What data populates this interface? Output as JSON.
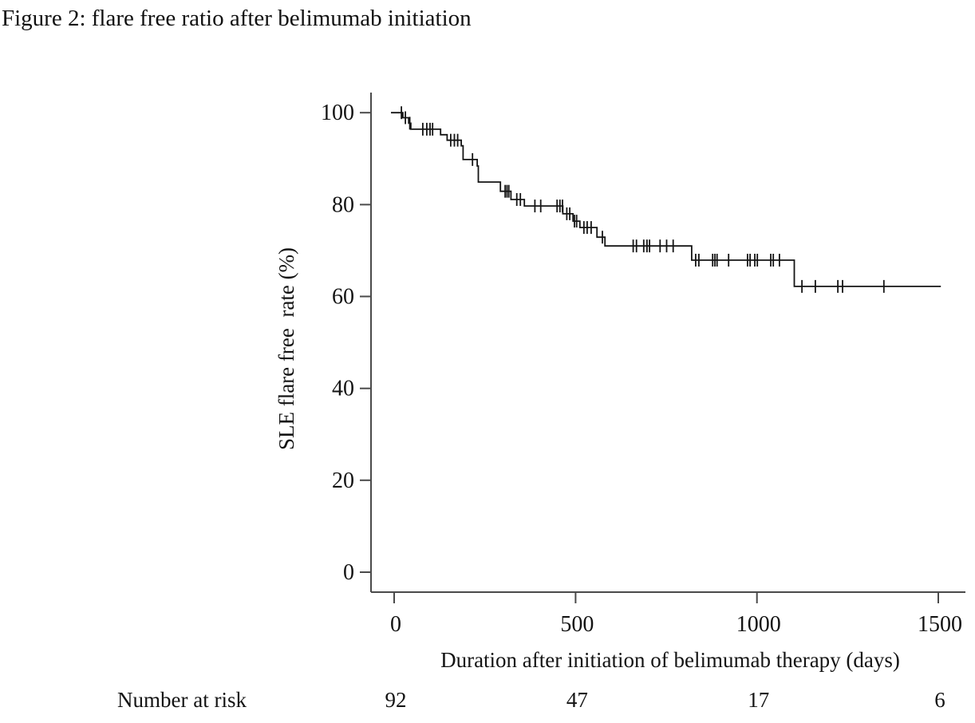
{
  "figure": {
    "title": "Figure 2: flare free ratio after belimumab initiation"
  },
  "chart_data": {
    "type": "line",
    "subtype": "kaplan-meier-step-curve",
    "title": "Figure 2: flare free ratio after belimumab initiation",
    "xlabel": "Duration after initiation of belimumab therapy (days)",
    "ylabel": "SLE flare free  rate (%)",
    "x_ticks": [
      0,
      500,
      1000,
      1500
    ],
    "y_ticks": [
      0,
      20,
      40,
      60,
      80,
      100
    ],
    "xlim": [
      0,
      1580
    ],
    "ylim": [
      0,
      100
    ],
    "grid": "off",
    "legend": "none",
    "curve_color": "#151515",
    "start": {
      "day": 0,
      "level": 100
    },
    "end_day": 1507,
    "steps": [
      [
        24,
        98.9
      ],
      [
        40,
        97.7
      ],
      [
        46,
        96.4
      ],
      [
        128,
        95.2
      ],
      [
        146,
        94.0
      ],
      [
        185,
        92.8
      ],
      [
        190,
        89.8
      ],
      [
        229,
        88.4
      ],
      [
        232,
        84.9
      ],
      [
        293,
        82.9
      ],
      [
        322,
        81.1
      ],
      [
        359,
        79.7
      ],
      [
        465,
        78.0
      ],
      [
        493,
        76.4
      ],
      [
        512,
        75.0
      ],
      [
        559,
        72.9
      ],
      [
        581,
        71.0
      ],
      [
        820,
        67.9
      ],
      [
        1103,
        62.2
      ]
    ],
    "censor_marks": [
      [
        20,
        100
      ],
      [
        31,
        98.9
      ],
      [
        43,
        97.7
      ],
      [
        79,
        96.4
      ],
      [
        90,
        96.4
      ],
      [
        99,
        96.4
      ],
      [
        106,
        96.4
      ],
      [
        156,
        94.0
      ],
      [
        166,
        94.0
      ],
      [
        175,
        94.0
      ],
      [
        216,
        89.8
      ],
      [
        306,
        82.9
      ],
      [
        311,
        82.9
      ],
      [
        316,
        82.9
      ],
      [
        338,
        81.1
      ],
      [
        348,
        81.1
      ],
      [
        388,
        79.7
      ],
      [
        404,
        79.7
      ],
      [
        449,
        79.7
      ],
      [
        457,
        79.7
      ],
      [
        464,
        79.7
      ],
      [
        476,
        78.0
      ],
      [
        484,
        78.0
      ],
      [
        497,
        76.4
      ],
      [
        503,
        76.4
      ],
      [
        523,
        75.0
      ],
      [
        532,
        75.0
      ],
      [
        543,
        75.0
      ],
      [
        574,
        72.9
      ],
      [
        659,
        71.0
      ],
      [
        668,
        71.0
      ],
      [
        688,
        71.0
      ],
      [
        697,
        71.0
      ],
      [
        704,
        71.0
      ],
      [
        733,
        71.0
      ],
      [
        751,
        71.0
      ],
      [
        769,
        71.0
      ],
      [
        831,
        67.9
      ],
      [
        840,
        67.9
      ],
      [
        878,
        67.9
      ],
      [
        884,
        67.9
      ],
      [
        890,
        67.9
      ],
      [
        922,
        67.9
      ],
      [
        974,
        67.9
      ],
      [
        981,
        67.9
      ],
      [
        994,
        67.9
      ],
      [
        1001,
        67.9
      ],
      [
        1038,
        67.9
      ],
      [
        1045,
        67.9
      ],
      [
        1062,
        67.9
      ],
      [
        1124,
        62.2
      ],
      [
        1161,
        62.2
      ],
      [
        1223,
        62.2
      ],
      [
        1236,
        62.2
      ],
      [
        1350,
        62.2
      ]
    ],
    "number_at_risk": {
      "label": "Number at risk",
      "times": [
        0,
        500,
        1000,
        1500
      ],
      "values": [
        92,
        47,
        17,
        6
      ]
    }
  }
}
